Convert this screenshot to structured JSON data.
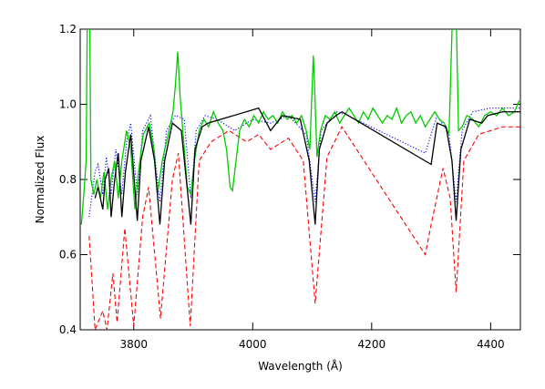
{
  "chart_data": {
    "type": "line",
    "xlabel": "Wavelength (Å)",
    "ylabel": "Normalized Flux",
    "xlim": [
      3710,
      4450
    ],
    "ylim": [
      0.4,
      1.2
    ],
    "xticks": [
      3800,
      4000,
      4200,
      4400
    ],
    "yticks": [
      0.4,
      0.6,
      0.8,
      {
        "value": 1,
        "label": "1.0"
      },
      1.2
    ],
    "series": [
      {
        "color": "#ff0000",
        "dash": "dashed",
        "x": [
          3725,
          3735,
          3748,
          3755,
          3765,
          3772,
          3785,
          3800,
          3815,
          3825,
          3845,
          3865,
          3875,
          3895,
          3910,
          3930,
          3960,
          3990,
          4010,
          4030,
          4060,
          4085,
          4105,
          4125,
          4150,
          4290,
          4300,
          4320,
          4332,
          4342,
          4355,
          4380,
          4420,
          4450
        ],
        "values": [
          0.65,
          0.4,
          0.45,
          0.4,
          0.55,
          0.42,
          0.67,
          0.41,
          0.7,
          0.78,
          0.43,
          0.8,
          0.87,
          0.41,
          0.85,
          0.9,
          0.93,
          0.9,
          0.92,
          0.88,
          0.91,
          0.85,
          0.47,
          0.86,
          0.94,
          0.6,
          0.68,
          0.83,
          0.75,
          0.5,
          0.85,
          0.92,
          0.94,
          0.94
        ]
      },
      {
        "color": "#0000ff",
        "dash": "dotted",
        "x": [
          3725,
          3735,
          3740,
          3748,
          3754,
          3762,
          3770,
          3780,
          3788,
          3795,
          3806,
          3815,
          3828,
          3844,
          3855,
          3870,
          3885,
          3896,
          3905,
          3920,
          3940,
          3970,
          4000,
          4030,
          4060,
          4090,
          4105,
          4115,
          4140,
          4160,
          4290,
          4310,
          4330,
          4342,
          4352,
          4370,
          4400,
          4450
        ],
        "values": [
          0.7,
          0.82,
          0.84,
          0.76,
          0.86,
          0.76,
          0.88,
          0.76,
          0.9,
          0.95,
          0.76,
          0.93,
          0.97,
          0.74,
          0.93,
          0.97,
          0.96,
          0.75,
          0.93,
          0.97,
          0.96,
          0.93,
          0.96,
          0.95,
          0.97,
          0.92,
          0.74,
          0.93,
          0.98,
          0.97,
          0.87,
          0.97,
          0.92,
          0.74,
          0.93,
          0.98,
          0.99,
          0.99
        ]
      },
      {
        "color": "#00cc00",
        "dash": "solid",
        "x": [
          3712,
          3716,
          3720,
          3722,
          3726,
          3728,
          3733,
          3738,
          3744,
          3750,
          3756,
          3762,
          3768,
          3774,
          3780,
          3788,
          3795,
          3802,
          3808,
          3816,
          3826,
          3834,
          3840,
          3848,
          3858,
          3866,
          3870,
          3874,
          3878,
          3884,
          3890,
          3896,
          3902,
          3910,
          3918,
          3926,
          3934,
          3942,
          3950,
          3956,
          3962,
          3966,
          3972,
          3978,
          3986,
          3994,
          4002,
          4010,
          4018,
          4026,
          4034,
          4042,
          4050,
          4058,
          4066,
          4074,
          4082,
          4090,
          4096,
          4100,
          4102,
          4104,
          4108,
          4114,
          4122,
          4130,
          4138,
          4146,
          4154,
          4162,
          4170,
          4178,
          4186,
          4194,
          4202,
          4210,
          4218,
          4226,
          4234,
          4242,
          4250,
          4258,
          4266,
          4274,
          4282,
          4290,
          4298,
          4306,
          4314,
          4322,
          4330,
          4336,
          4342,
          4346,
          4352,
          4360,
          4370,
          4380,
          4390,
          4400,
          4410,
          4420,
          4430,
          4440,
          4448
        ],
        "values": [
          0.68,
          0.76,
          0.85,
          1.25,
          1.25,
          0.8,
          0.76,
          0.8,
          0.75,
          0.82,
          0.72,
          0.8,
          0.85,
          0.75,
          0.85,
          0.93,
          0.88,
          0.72,
          0.82,
          0.92,
          0.95,
          0.88,
          0.76,
          0.85,
          0.92,
          0.98,
          1.05,
          1.14,
          1.02,
          0.9,
          0.78,
          0.76,
          0.85,
          0.93,
          0.96,
          0.94,
          0.98,
          0.95,
          0.93,
          0.88,
          0.78,
          0.77,
          0.85,
          0.93,
          0.96,
          0.94,
          0.97,
          0.95,
          0.98,
          0.96,
          0.97,
          0.95,
          0.98,
          0.96,
          0.97,
          0.95,
          0.97,
          0.93,
          0.88,
          1.05,
          1.13,
          1.05,
          0.86,
          0.93,
          0.97,
          0.96,
          0.98,
          0.95,
          0.97,
          0.99,
          0.97,
          0.95,
          0.98,
          0.96,
          0.99,
          0.97,
          0.95,
          0.97,
          0.96,
          0.99,
          0.95,
          0.97,
          0.98,
          0.95,
          0.97,
          0.94,
          0.96,
          0.98,
          0.96,
          0.95,
          0.92,
          1.25,
          1.25,
          0.93,
          0.94,
          0.97,
          0.96,
          0.94,
          0.97,
          0.98,
          0.97,
          0.99,
          0.97,
          0.98,
          1.01
        ]
      },
      {
        "color": "#000000",
        "dash": "solid",
        "x": [
          3735,
          3740,
          3748,
          3752,
          3758,
          3762,
          3768,
          3774,
          3780,
          3786,
          3795,
          3806,
          3812,
          3825,
          3835,
          3844,
          3852,
          3865,
          3880,
          3896,
          3903,
          3915,
          3925,
          4010,
          4030,
          4050,
          4080,
          4095,
          4105,
          4112,
          4125,
          4140,
          4150,
          4300,
          4310,
          4325,
          4335,
          4342,
          4350,
          4365,
          4385,
          4395,
          4420,
          4450
        ],
        "values": [
          0.75,
          0.78,
          0.72,
          0.8,
          0.83,
          0.7,
          0.8,
          0.87,
          0.7,
          0.82,
          0.92,
          0.69,
          0.85,
          0.94,
          0.85,
          0.68,
          0.85,
          0.95,
          0.93,
          0.68,
          0.88,
          0.94,
          0.95,
          0.99,
          0.93,
          0.97,
          0.96,
          0.85,
          0.68,
          0.88,
          0.95,
          0.97,
          0.98,
          0.84,
          0.95,
          0.94,
          0.85,
          0.69,
          0.88,
          0.96,
          0.95,
          0.97,
          0.98,
          0.98
        ]
      }
    ]
  }
}
